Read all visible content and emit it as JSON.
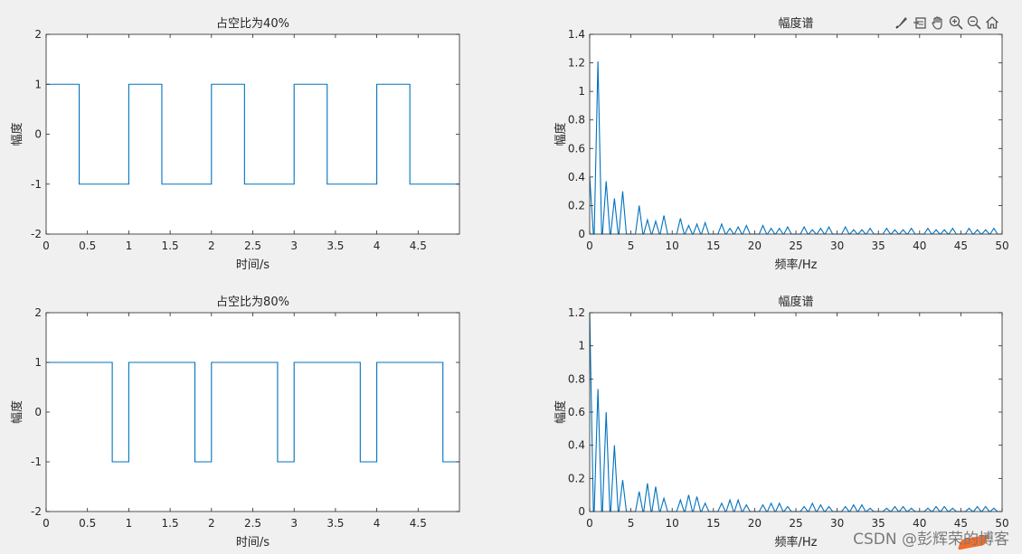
{
  "toolbar": {
    "icons": [
      "brush-icon",
      "data-tip-icon",
      "pan-hand-icon",
      "zoom-in-icon",
      "zoom-out-icon",
      "home-icon"
    ]
  },
  "watermark": "CSDN @彭辉荣的博客",
  "colors": {
    "line": "#0072bd",
    "axes_bg": "#ffffff",
    "figure_bg": "#f0f0f0"
  },
  "chart_data": [
    {
      "type": "line",
      "title": "占空比为40%",
      "xlabel": "时间/s",
      "ylabel": "幅度",
      "xlim": [
        0,
        5
      ],
      "ylim": [
        -2,
        2
      ],
      "xticks": [
        0,
        0.5,
        1,
        1.5,
        2,
        2.5,
        3,
        3.5,
        4,
        4.5
      ],
      "yticks": [
        -2,
        -1,
        0,
        1,
        2
      ],
      "xtick_labels": [
        "0",
        "0.5",
        "1",
        "1.5",
        "2",
        "2.5",
        "3",
        "3.5",
        "4",
        "4.5"
      ],
      "ytick_labels": [
        "-2",
        "-1",
        "0",
        "1",
        "2"
      ],
      "x": [
        0,
        0.4,
        0.4,
        1,
        1,
        1.4,
        1.4,
        2,
        2,
        2.4,
        2.4,
        3,
        3,
        3.4,
        3.4,
        4,
        4,
        4.4,
        4.4,
        5
      ],
      "y": [
        1,
        1,
        -1,
        -1,
        1,
        1,
        -1,
        -1,
        1,
        1,
        -1,
        -1,
        1,
        1,
        -1,
        -1,
        1,
        1,
        -1,
        -1
      ]
    },
    {
      "type": "line",
      "title": "幅度谱",
      "xlabel": "频率/Hz",
      "ylabel": "幅度",
      "xlim": [
        0,
        50
      ],
      "ylim": [
        0,
        1.4
      ],
      "xticks": [
        0,
        5,
        10,
        15,
        20,
        25,
        30,
        35,
        40,
        45,
        50
      ],
      "yticks": [
        0,
        0.2,
        0.4,
        0.6,
        0.8,
        1,
        1.2,
        1.4
      ],
      "xtick_labels": [
        "0",
        "5",
        "10",
        "15",
        "20",
        "25",
        "30",
        "35",
        "40",
        "45",
        "50"
      ],
      "ytick_labels": [
        "0",
        "0.2",
        "0.4",
        "0.6",
        "0.8",
        "1",
        "1.2",
        "1.4"
      ],
      "peaks": [
        [
          0,
          0.4
        ],
        [
          1,
          1.21
        ],
        [
          2,
          0.37
        ],
        [
          3,
          0.25
        ],
        [
          4,
          0.3
        ],
        [
          6,
          0.2
        ],
        [
          7,
          0.1
        ],
        [
          8,
          0.09
        ],
        [
          9,
          0.13
        ],
        [
          11,
          0.11
        ],
        [
          12,
          0.06
        ],
        [
          13,
          0.07
        ],
        [
          14,
          0.08
        ],
        [
          16,
          0.07
        ],
        [
          17,
          0.04
        ],
        [
          18,
          0.05
        ],
        [
          19,
          0.06
        ],
        [
          21,
          0.06
        ],
        [
          22,
          0.04
        ],
        [
          23,
          0.04
        ],
        [
          24,
          0.05
        ],
        [
          26,
          0.05
        ],
        [
          27,
          0.03
        ],
        [
          28,
          0.04
        ],
        [
          29,
          0.05
        ],
        [
          31,
          0.05
        ],
        [
          32,
          0.03
        ],
        [
          33,
          0.03
        ],
        [
          34,
          0.04
        ],
        [
          36,
          0.04
        ],
        [
          37,
          0.03
        ],
        [
          38,
          0.03
        ],
        [
          39,
          0.04
        ],
        [
          41,
          0.04
        ],
        [
          42,
          0.03
        ],
        [
          43,
          0.03
        ],
        [
          44,
          0.04
        ],
        [
          46,
          0.04
        ],
        [
          47,
          0.03
        ],
        [
          48,
          0.03
        ],
        [
          49,
          0.04
        ]
      ]
    },
    {
      "type": "line",
      "title": "占空比为80%",
      "xlabel": "时间/s",
      "ylabel": "幅度",
      "xlim": [
        0,
        5
      ],
      "ylim": [
        -2,
        2
      ],
      "xticks": [
        0,
        0.5,
        1,
        1.5,
        2,
        2.5,
        3,
        3.5,
        4,
        4.5
      ],
      "yticks": [
        -2,
        -1,
        0,
        1,
        2
      ],
      "xtick_labels": [
        "0",
        "0.5",
        "1",
        "1.5",
        "2",
        "2.5",
        "3",
        "3.5",
        "4",
        "4.5"
      ],
      "ytick_labels": [
        "-2",
        "-1",
        "0",
        "1",
        "2"
      ],
      "x": [
        0,
        0.8,
        0.8,
        1,
        1,
        1.8,
        1.8,
        2,
        2,
        2.8,
        2.8,
        3,
        3,
        3.8,
        3.8,
        4,
        4,
        4.8,
        4.8,
        5
      ],
      "y": [
        1,
        1,
        -1,
        -1,
        1,
        1,
        -1,
        -1,
        1,
        1,
        -1,
        -1,
        1,
        1,
        -1,
        -1,
        1,
        1,
        -1,
        -1
      ]
    },
    {
      "type": "line",
      "title": "幅度谱",
      "xlabel": "频率/Hz",
      "ylabel": "幅度",
      "xlim": [
        0,
        50
      ],
      "ylim": [
        0,
        1.2
      ],
      "xticks": [
        0,
        5,
        10,
        15,
        20,
        25,
        30,
        35,
        40,
        45,
        50
      ],
      "yticks": [
        0,
        0.2,
        0.4,
        0.6,
        0.8,
        1,
        1.2
      ],
      "xtick_labels": [
        "0",
        "5",
        "10",
        "15",
        "20",
        "25",
        "30",
        "35",
        "40",
        "45",
        "50"
      ],
      "ytick_labels": [
        "0",
        "0.2",
        "0.4",
        "0.6",
        "0.8",
        "1",
        "1.2"
      ],
      "peaks": [
        [
          0,
          1.2
        ],
        [
          1,
          0.74
        ],
        [
          2,
          0.6
        ],
        [
          3,
          0.4
        ],
        [
          4,
          0.19
        ],
        [
          6,
          0.12
        ],
        [
          7,
          0.17
        ],
        [
          8,
          0.15
        ],
        [
          9,
          0.08
        ],
        [
          11,
          0.07
        ],
        [
          12,
          0.1
        ],
        [
          13,
          0.09
        ],
        [
          14,
          0.05
        ],
        [
          16,
          0.05
        ],
        [
          17,
          0.07
        ],
        [
          18,
          0.07
        ],
        [
          19,
          0.04
        ],
        [
          21,
          0.04
        ],
        [
          22,
          0.05
        ],
        [
          23,
          0.05
        ],
        [
          24,
          0.03
        ],
        [
          26,
          0.03
        ],
        [
          27,
          0.05
        ],
        [
          28,
          0.04
        ],
        [
          29,
          0.03
        ],
        [
          31,
          0.03
        ],
        [
          32,
          0.04
        ],
        [
          33,
          0.04
        ],
        [
          34,
          0.02
        ],
        [
          36,
          0.02
        ],
        [
          37,
          0.03
        ],
        [
          38,
          0.03
        ],
        [
          39,
          0.02
        ],
        [
          41,
          0.02
        ],
        [
          42,
          0.03
        ],
        [
          43,
          0.03
        ],
        [
          44,
          0.02
        ],
        [
          46,
          0.02
        ],
        [
          47,
          0.03
        ],
        [
          48,
          0.03
        ],
        [
          49,
          0.02
        ]
      ]
    }
  ]
}
